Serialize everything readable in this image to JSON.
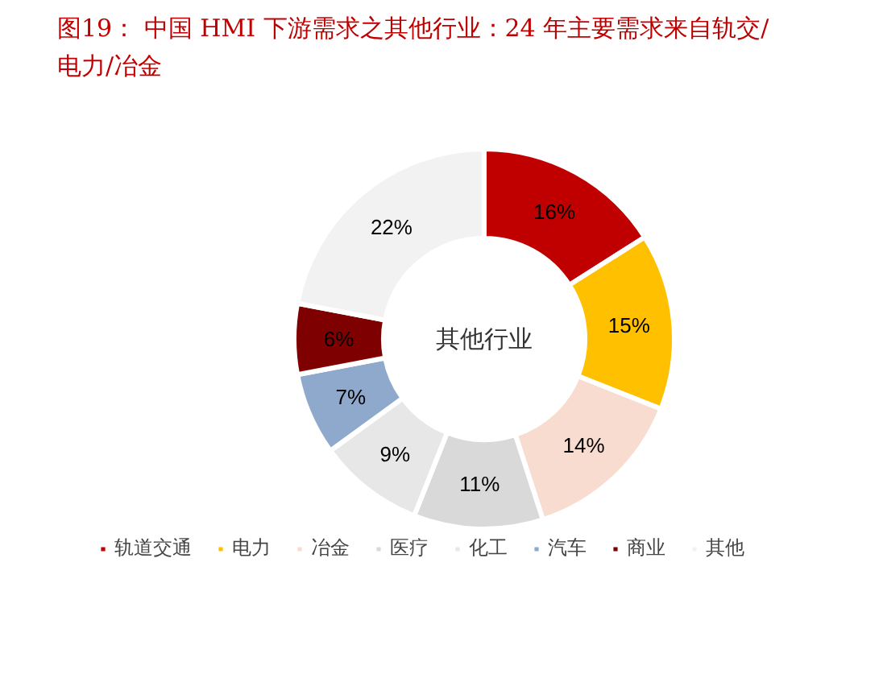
{
  "chart_data": {
    "type": "donut",
    "title": "图19：  中国 HMI 下游需求之其他行业：24 年主要需求来自轨交/电力/冶金",
    "categories": [
      "轨道交通",
      "电力",
      "冶金",
      "医疗",
      "化工",
      "汽车",
      "商业",
      "其他"
    ],
    "values": [
      16,
      15,
      14,
      11,
      9,
      7,
      6,
      22
    ],
    "colors": [
      "#c00000",
      "#ffc000",
      "#f8dccf",
      "#d9d9d9",
      "#e7e7e7",
      "#8ea9cc",
      "#7f0000",
      "#f2f2f2"
    ],
    "value_labels": [
      "16%",
      "15%",
      "14%",
      "11%",
      "9%",
      "7%",
      "6%",
      "22%"
    ],
    "annotations": [
      "其他行业"
    ],
    "legend": "bottom"
  }
}
